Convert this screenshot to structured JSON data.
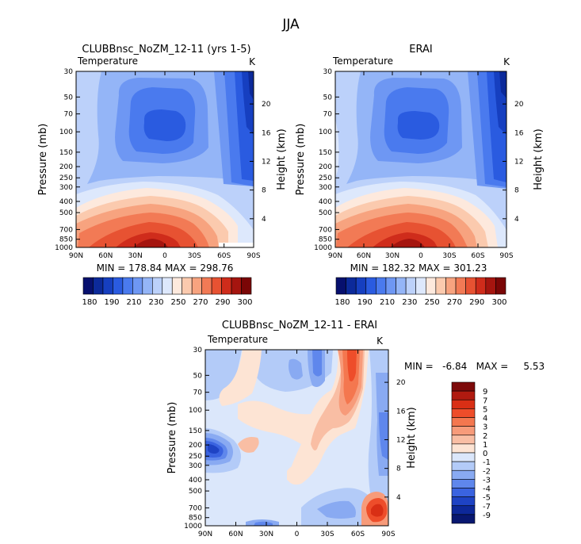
{
  "page_title": "JJA",
  "chart_data": [
    {
      "type": "heatmap",
      "subtype": "filled-contour",
      "title": "CLUBBnsc_NoZM_12-11 (yrs 1-5)",
      "subtitle": "Temperature",
      "units": "K",
      "xlabel": "",
      "ylabel": "Pressure (mb)",
      "ylabel_right": "Height (km)",
      "x_ticks": [
        "90N",
        "60N",
        "30N",
        "0",
        "30S",
        "60S",
        "90S"
      ],
      "y_ticks": [
        "30",
        "50",
        "70",
        "100",
        "150",
        "200",
        "250",
        "300",
        "400",
        "500",
        "700",
        "850",
        "1000"
      ],
      "y_ticks_right": [
        "20",
        "16",
        "12",
        "8",
        "4"
      ],
      "xlim": [
        90,
        -90
      ],
      "ylim": [
        1000,
        30
      ],
      "min_max_text": "MIN = 178.84   MAX = 298.76",
      "colorbar": {
        "orientation": "horizontal",
        "levels": [
          180,
          190,
          200,
          210,
          220,
          230,
          240,
          250,
          260,
          270,
          280,
          290,
          300
        ],
        "labels": [
          "180",
          "190",
          "210",
          "230",
          "250",
          "270",
          "290",
          "300"
        ],
        "colors": [
          "#07106e",
          "#0c2a9a",
          "#163fc0",
          "#2a5be0",
          "#4a7aee",
          "#6e97f3",
          "#94b5f7",
          "#bcd1fa",
          "#dde8fc",
          "#fde9dd",
          "#fbcaae",
          "#f7a37f",
          "#f27a55",
          "#e75232",
          "#cf2c1b",
          "#a5150f",
          "#7a0606"
        ]
      }
    },
    {
      "type": "heatmap",
      "subtype": "filled-contour",
      "title": "ERAI",
      "subtitle": "Temperature",
      "units": "K",
      "xlabel": "",
      "ylabel": "Pressure (mb)",
      "ylabel_right": "Height (km)",
      "x_ticks": [
        "90N",
        "60N",
        "30N",
        "0",
        "30S",
        "60S",
        "90S"
      ],
      "y_ticks": [
        "30",
        "50",
        "70",
        "100",
        "150",
        "200",
        "250",
        "300",
        "400",
        "500",
        "700",
        "850",
        "1000"
      ],
      "y_ticks_right": [
        "20",
        "16",
        "12",
        "8",
        "4"
      ],
      "xlim": [
        90,
        -90
      ],
      "ylim": [
        1000,
        30
      ],
      "min_max_text": "MIN = 182.32   MAX = 301.23",
      "colorbar": {
        "orientation": "horizontal",
        "levels": [
          180,
          190,
          200,
          210,
          220,
          230,
          240,
          250,
          260,
          270,
          280,
          290,
          300
        ],
        "labels": [
          "180",
          "190",
          "210",
          "230",
          "250",
          "270",
          "290",
          "300"
        ],
        "colors": [
          "#07106e",
          "#0c2a9a",
          "#163fc0",
          "#2a5be0",
          "#4a7aee",
          "#6e97f3",
          "#94b5f7",
          "#bcd1fa",
          "#dde8fc",
          "#fde9dd",
          "#fbcaae",
          "#f7a37f",
          "#f27a55",
          "#e75232",
          "#cf2c1b",
          "#a5150f",
          "#7a0606"
        ]
      }
    },
    {
      "type": "heatmap",
      "subtype": "filled-contour-difference",
      "title": "CLUBBnsc_NoZM_12-11 - ERAI",
      "subtitle": "Temperature",
      "units": "K",
      "xlabel": "",
      "ylabel": "Pressure (mb)",
      "ylabel_right": "Height (km)",
      "x_ticks": [
        "90N",
        "60N",
        "30N",
        "0",
        "30S",
        "60S",
        "90S"
      ],
      "y_ticks": [
        "30",
        "50",
        "70",
        "100",
        "150",
        "200",
        "250",
        "300",
        "400",
        "500",
        "700",
        "850",
        "1000"
      ],
      "y_ticks_right": [
        "20",
        "16",
        "12",
        "8",
        "4"
      ],
      "xlim": [
        90,
        -90
      ],
      "ylim": [
        1000,
        30
      ],
      "min_max_text": "MIN =   -6.84   MAX =     5.53",
      "colorbar": {
        "orientation": "vertical",
        "levels": [
          -9,
          -7,
          -5,
          -4,
          -3,
          -2,
          -1,
          0,
          1,
          2,
          3,
          4,
          5,
          7,
          9
        ],
        "labels": [
          "9",
          "7",
          "5",
          "4",
          "3",
          "2",
          "1",
          "0",
          "-1",
          "-2",
          "-3",
          "-4",
          "-5",
          "-7",
          "-9"
        ],
        "colors": [
          "#7d0a0a",
          "#b01a10",
          "#d92f15",
          "#ee4d2a",
          "#f4774f",
          "#f79b7a",
          "#f9bea4",
          "#fde4d4",
          "#dbe7fb",
          "#b3cbf8",
          "#89aaf2",
          "#5f87ec",
          "#3a63e0",
          "#1e43c4",
          "#0d2899",
          "#081770"
        ]
      }
    }
  ]
}
